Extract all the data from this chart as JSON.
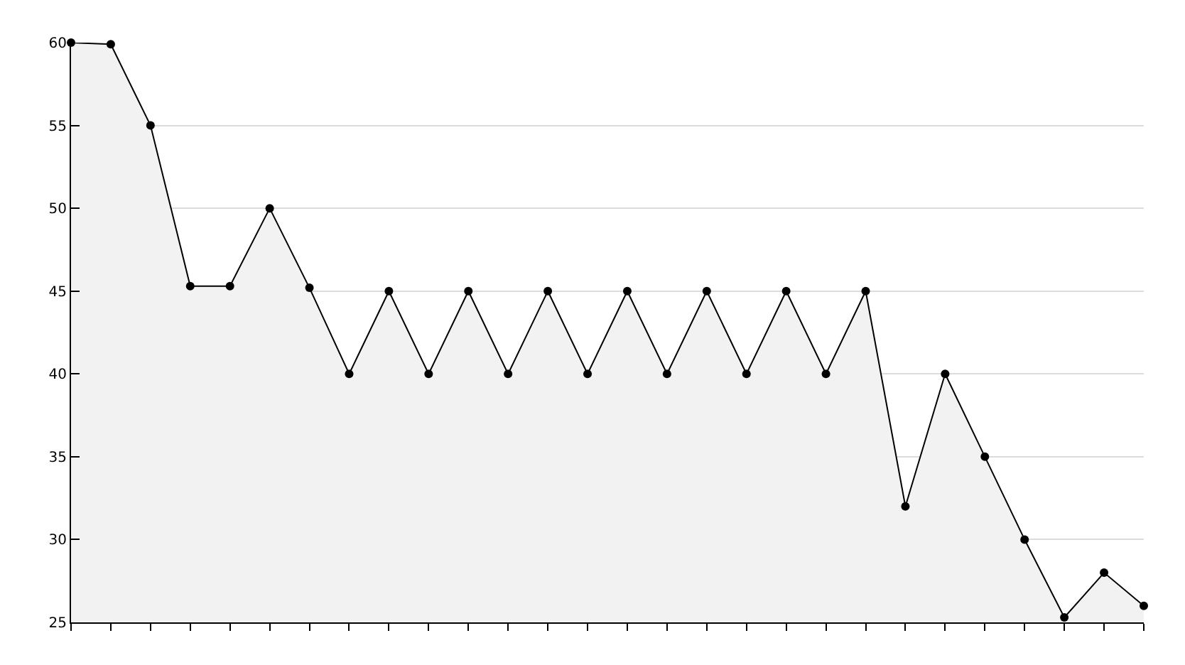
{
  "chart_data": {
    "type": "area",
    "categories": [
      null,
      null,
      null,
      null,
      null,
      null,
      null,
      null,
      null,
      null,
      null,
      null,
      null,
      null,
      null,
      null,
      null,
      null,
      null,
      null,
      null,
      null,
      null,
      null,
      null,
      null,
      null,
      null
    ],
    "series": [
      {
        "color": "#000000",
        "values": [
          60,
          59.9,
          55,
          45.3,
          45.3,
          50,
          45.2,
          40,
          45,
          40,
          45,
          40,
          45,
          40,
          45,
          40,
          45,
          40,
          45,
          40,
          45,
          32,
          40,
          35,
          30,
          25.3,
          28,
          26
        ]
      }
    ],
    "ylim": [
      25,
      60
    ],
    "yticks": [
      25,
      30,
      35,
      40,
      45,
      50,
      55,
      60
    ],
    "grid": "y",
    "marker": "circle",
    "line_style": "solid",
    "tick_labels": "y",
    "legend": false
  }
}
